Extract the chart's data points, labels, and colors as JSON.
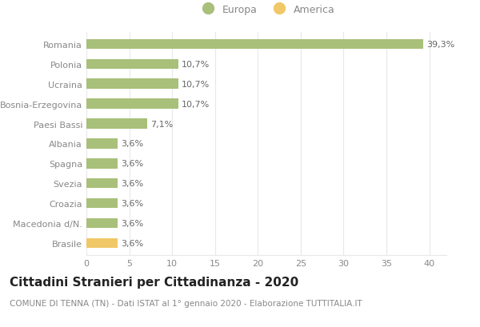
{
  "categories": [
    "Brasile",
    "Macedonia d/N.",
    "Croazia",
    "Svezia",
    "Spagna",
    "Albania",
    "Paesi Bassi",
    "Bosnia-Erzegovina",
    "Ucraina",
    "Polonia",
    "Romania"
  ],
  "values": [
    3.6,
    3.6,
    3.6,
    3.6,
    3.6,
    3.6,
    7.1,
    10.7,
    10.7,
    10.7,
    39.3
  ],
  "labels": [
    "3,6%",
    "3,6%",
    "3,6%",
    "3,6%",
    "3,6%",
    "3,6%",
    "7,1%",
    "10,7%",
    "10,7%",
    "10,7%",
    "39,3%"
  ],
  "colors": [
    "#f0c868",
    "#a8c07a",
    "#a8c07a",
    "#a8c07a",
    "#a8c07a",
    "#a8c07a",
    "#a8c07a",
    "#a8c07a",
    "#a8c07a",
    "#a8c07a",
    "#a8c07a"
  ],
  "europa_color": "#a8c07a",
  "america_color": "#f0c868",
  "background_color": "#ffffff",
  "grid_color": "#e8e8e8",
  "title": "Cittadini Stranieri per Cittadinanza - 2020",
  "subtitle": "COMUNE DI TENNA (TN) - Dati ISTAT al 1° gennaio 2020 - Elaborazione TUTTITALIA.IT",
  "xlim": [
    0,
    42
  ],
  "xticks": [
    0,
    5,
    10,
    15,
    20,
    25,
    30,
    35,
    40
  ],
  "legend_europa": "Europa",
  "legend_america": "America",
  "bar_height": 0.5,
  "title_fontsize": 11,
  "subtitle_fontsize": 7.5,
  "label_fontsize": 8,
  "tick_fontsize": 8,
  "label_color": "#666666",
  "tick_color": "#888888"
}
